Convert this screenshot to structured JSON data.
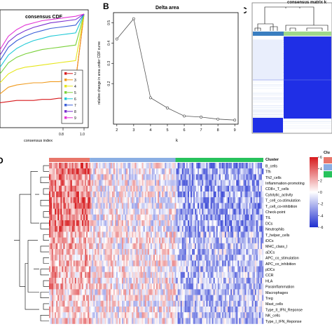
{
  "panels": {
    "a": {
      "title": "consensus CDF",
      "xlabel": "consensus index",
      "xticks": [
        "0.8",
        "1.0"
      ],
      "legend_labels": [
        "2",
        "3",
        "4",
        "5",
        "6",
        "7",
        "8",
        "9"
      ],
      "colors": {
        "2": "#d7191c",
        "3": "#f09a1c",
        "4": "#e6e61a",
        "5": "#7ad13a",
        "6": "#1fc9d6",
        "7": "#3c5fd8",
        "8": "#7a2fd0",
        "9": "#e233d6"
      }
    },
    "b": {
      "label": "B",
      "title": "Delta area",
      "ylabel": "relative change in area under CDF curve",
      "xlabel": "k",
      "xticks": [
        "2",
        "3",
        "4",
        "5",
        "6",
        "7",
        "8",
        "9"
      ],
      "yticks": [
        "0.2",
        "0.3",
        "0.4",
        "0.5"
      ]
    },
    "c": {
      "label": "C",
      "title": "consensus matrix k"
    },
    "d": {
      "label": "D",
      "cluster_header": "Cluster",
      "legend_title": "Clu",
      "scale_ticks": [
        "6",
        "4",
        "2",
        "0",
        "-2",
        "-4",
        "-6"
      ],
      "cluster_colors": [
        "#e8766a",
        "#8aaee3",
        "#27c25c"
      ],
      "rows": [
        "B_cells",
        "Tfh",
        "Th2_cells",
        "Inflammation-promoting",
        "CD8+_T_cells",
        "Cytolytic_activity",
        "T_cell_co-stimulation",
        "T_cell_co-inhibition",
        "Check-point",
        "TIL",
        "DCs",
        "Neutrophils",
        "T_helper_cells",
        "iDCs",
        "MHC_class_I",
        "aDCs",
        "APC_co_stimulation",
        "APC_co_inhibition",
        "pDCs",
        "CCR",
        "HLA",
        "Parainflammation",
        "Macrophages",
        "Treg",
        "Mast_cells",
        "Type_II_IFN_Reponse",
        "NK_cells",
        "Type_I_IFN_Reponse"
      ]
    }
  },
  "chart_data": [
    {
      "type": "line",
      "title": "Delta area",
      "xlabel": "k",
      "ylabel": "relative change in area under CDF curve",
      "x": [
        2,
        3,
        4,
        5,
        6,
        7,
        8,
        9
      ],
      "y": [
        0.42,
        0.52,
        0.13,
        0.08,
        0.04,
        0.035,
        0.025,
        0.02
      ],
      "xlim": [
        1.8,
        9.2
      ],
      "ylim": [
        0,
        0.55
      ]
    },
    {
      "type": "line",
      "title": "consensus CDF",
      "xlabel": "consensus index",
      "series": [
        {
          "name": "2",
          "values": [
            0.2,
            0.21,
            0.22,
            0.22,
            0.22,
            0.23,
            0.23,
            0.24,
            0.24,
            0.4,
            1.0
          ]
        },
        {
          "name": "3",
          "values": [
            0.28,
            0.34,
            0.36,
            0.37,
            0.38,
            0.38,
            0.39,
            0.39,
            0.4,
            0.4,
            1.0
          ]
        },
        {
          "name": "4",
          "values": [
            0.38,
            0.46,
            0.5,
            0.52,
            0.53,
            0.54,
            0.55,
            0.56,
            0.57,
            0.58,
            1.0
          ]
        },
        {
          "name": "5",
          "values": [
            0.46,
            0.56,
            0.61,
            0.64,
            0.66,
            0.68,
            0.69,
            0.7,
            0.71,
            0.72,
            1.0
          ]
        },
        {
          "name": "6",
          "values": [
            0.52,
            0.63,
            0.69,
            0.73,
            0.76,
            0.78,
            0.8,
            0.81,
            0.82,
            0.83,
            1.0
          ]
        },
        {
          "name": "7",
          "values": [
            0.58,
            0.7,
            0.76,
            0.8,
            0.83,
            0.85,
            0.87,
            0.88,
            0.89,
            0.9,
            1.0
          ]
        },
        {
          "name": "8",
          "values": [
            0.63,
            0.75,
            0.81,
            0.85,
            0.88,
            0.9,
            0.92,
            0.93,
            0.94,
            0.95,
            1.0
          ]
        },
        {
          "name": "9",
          "values": [
            0.68,
            0.8,
            0.86,
            0.9,
            0.92,
            0.94,
            0.95,
            0.96,
            0.97,
            0.98,
            1.0
          ]
        }
      ]
    }
  ]
}
